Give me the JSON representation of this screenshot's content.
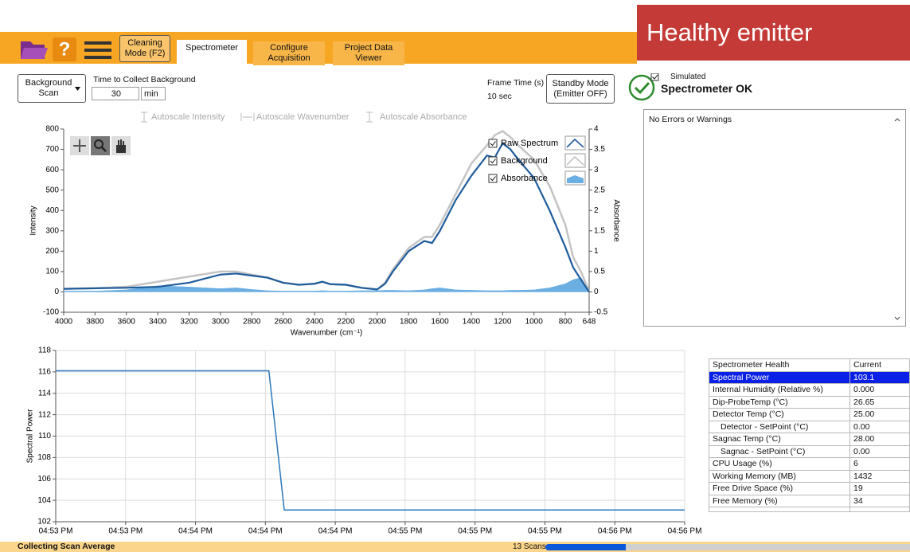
{
  "banner": "Healthy emitter",
  "toolbar": {
    "help": "?",
    "cleaning_button": [
      "Cleaning",
      "Mode (F2)"
    ],
    "tabs": [
      [
        "Spectrometer"
      ],
      [
        "Configure",
        "Acquisition"
      ],
      [
        "Project Data",
        "Viewer"
      ]
    ]
  },
  "controls": {
    "background_scan": [
      "Background",
      "Scan"
    ],
    "time_to_collect": {
      "label": "Time to Collect Background",
      "value": "30",
      "unit": "min"
    },
    "frame_time": {
      "label": "Frame Time (s)",
      "value": "10 sec"
    },
    "standby_button": [
      "Standby Mode",
      "(Emitter OFF)"
    ],
    "status": {
      "simulated": "Simulated",
      "message": "Spectrometer OK"
    },
    "autoscale": [
      "Autoscale Intensity",
      "Autoscale Wavenumber",
      "Autoscale Absorbance"
    ]
  },
  "errors": "No Errors or Warnings",
  "chart_data": [
    {
      "type": "line",
      "xlabel": "Wavenumber (cm⁻¹)",
      "ylabel": "Intensity",
      "y2label": "Absorbance",
      "x": [
        4000,
        3800,
        3600,
        3400,
        3200,
        3000,
        2900,
        2800,
        2700,
        2600,
        2500,
        2400,
        2350,
        2300,
        2200,
        2100,
        2000,
        1950,
        1900,
        1800,
        1700,
        1650,
        1600,
        1500,
        1400,
        1300,
        1250,
        1200,
        1150,
        1100,
        1000,
        900,
        800,
        750,
        700,
        648
      ],
      "xlim": [
        4000,
        648
      ],
      "xticks": [
        4000,
        3800,
        3600,
        3400,
        3200,
        3000,
        2800,
        2600,
        2400,
        2200,
        2000,
        1800,
        1600,
        1400,
        1200,
        1000,
        800,
        648
      ],
      "ylim": [
        -100,
        800
      ],
      "yticks": [
        -100,
        0,
        100,
        200,
        300,
        400,
        500,
        600,
        700,
        800
      ],
      "y2lim": [
        -0.5,
        4
      ],
      "y2ticks": [
        -0.5,
        0,
        0.5,
        1,
        1.5,
        2,
        2.5,
        3,
        3.5,
        4
      ],
      "series": [
        {
          "name": "Raw Spectrum",
          "color": "#1f5c9c",
          "values": [
            15,
            18,
            20,
            25,
            45,
            85,
            90,
            80,
            70,
            45,
            35,
            40,
            50,
            38,
            35,
            20,
            12,
            40,
            100,
            200,
            250,
            240,
            300,
            450,
            570,
            670,
            660,
            730,
            700,
            650,
            560,
            400,
            220,
            120,
            60,
            0
          ]
        },
        {
          "name": "Background",
          "color": "#c4c4c4",
          "values": [
            15,
            18,
            25,
            50,
            75,
            100,
            100,
            85,
            70,
            45,
            35,
            40,
            50,
            38,
            35,
            20,
            12,
            45,
            110,
            215,
            270,
            270,
            330,
            480,
            630,
            720,
            770,
            790,
            760,
            720,
            650,
            520,
            330,
            170,
            100,
            0
          ]
        },
        {
          "name": "Absorbance",
          "color": "#6aaee2",
          "axis": "y2",
          "fill": true,
          "values": [
            0.02,
            0.02,
            0.05,
            0.15,
            0.12,
            0.08,
            0.1,
            0.06,
            0.03,
            0.02,
            0.02,
            0.02,
            0.03,
            0.02,
            0.02,
            0.03,
            0.03,
            0.04,
            0.04,
            0.03,
            0.05,
            0.08,
            0.1,
            0.05,
            0.04,
            0.03,
            0.03,
            0.03,
            0.04,
            0.04,
            0.05,
            0.1,
            0.2,
            0.3,
            0.35,
            0
          ]
        }
      ]
    },
    {
      "type": "line",
      "ylabel": "Spectral Power",
      "x": [
        0,
        3.05,
        3.27,
        9
      ],
      "values": [
        116.1,
        116.1,
        103.1,
        103.1
      ],
      "color": "#2a78b8",
      "xlim": [
        0,
        9
      ],
      "xticks": [
        {
          "value": 0,
          "label": "04:53 PM"
        },
        {
          "value": 1,
          "label": "04:53 PM"
        },
        {
          "value": 2,
          "label": "04:54 PM"
        },
        {
          "value": 3,
          "label": "04:54 PM"
        },
        {
          "value": 4,
          "label": "04:54 PM"
        },
        {
          "value": 5,
          "label": "04:55 PM"
        },
        {
          "value": 6,
          "label": "04:55 PM"
        },
        {
          "value": 7,
          "label": "04:55 PM"
        },
        {
          "value": 8,
          "label": "04:56 PM"
        },
        {
          "value": 9,
          "label": "04:56 PM"
        }
      ],
      "ylim": [
        102,
        118
      ],
      "yticks": [
        102,
        104,
        106,
        108,
        110,
        112,
        114,
        116,
        118
      ],
      "grid": true
    }
  ],
  "health_table": {
    "columns": [
      "Spectrometer Health",
      "Current"
    ],
    "selected": 0,
    "rows": [
      [
        "Spectral Power",
        "103.1"
      ],
      [
        "Internal Humidity (Relative %)",
        "0.000"
      ],
      [
        "Dip-ProbeTemp (°C)",
        "26.65"
      ],
      [
        "Detector Temp (°C)",
        "25.00"
      ],
      [
        "Detector - SetPoint (°C)",
        "0.00"
      ],
      [
        "Sagnac Temp (°C)",
        "28.00"
      ],
      [
        "Sagnac - SetPoint (°C)",
        "0.00"
      ],
      [
        "CPU Usage (%)",
        "6"
      ],
      [
        "Working Memory (MB)",
        "1432"
      ],
      [
        "Free Drive Space (%)",
        "19"
      ],
      [
        "Free Memory (%)",
        "34"
      ]
    ]
  },
  "statusbar": {
    "message": "Collecting Scan Average",
    "scans": "13 Scans",
    "progress": 22
  }
}
